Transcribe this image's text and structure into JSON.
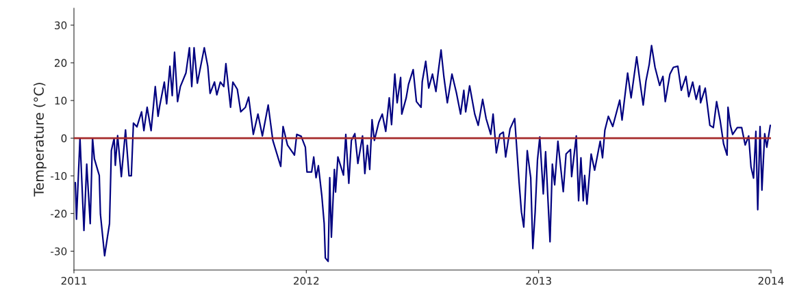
{
  "chart_data": {
    "type": "line",
    "ylabel": "Temperature (°C)",
    "xlim": [
      2011,
      2014
    ],
    "xticks": [
      2011,
      2012,
      2013,
      2014
    ],
    "ylim": [
      -35,
      34.5
    ],
    "yticks": [
      -30,
      -20,
      -10,
      0,
      10,
      20,
      30
    ],
    "grid": false,
    "marker": "none",
    "line_style": "solid",
    "ref_lines": [
      {
        "axis": "y",
        "value": 0,
        "color": "#a52a2a",
        "line_style": "solid"
      }
    ],
    "series": [
      {
        "color": "#000080",
        "x": [
          2011.006,
          2011.011,
          2011.026,
          2011.043,
          2011.055,
          2011.07,
          2011.08,
          2011.088,
          2011.109,
          2011.114,
          2011.132,
          2011.144,
          2011.153,
          2011.161,
          2011.173,
          2011.178,
          2011.188,
          2011.204,
          2011.222,
          2011.237,
          2011.247,
          2011.256,
          2011.271,
          2011.291,
          2011.301,
          2011.315,
          2011.332,
          2011.35,
          2011.362,
          2011.369,
          2011.389,
          2011.399,
          2011.413,
          2011.423,
          2011.433,
          2011.446,
          2011.458,
          2011.482,
          2011.497,
          2011.507,
          2011.517,
          2011.531,
          2011.561,
          2011.576,
          2011.586,
          2011.605,
          2011.615,
          2011.63,
          2011.645,
          2011.654,
          2011.674,
          2011.684,
          2011.703,
          2011.718,
          2011.738,
          2011.752,
          2011.772,
          2011.792,
          2011.811,
          2011.836,
          2011.856,
          2011.89,
          2011.9,
          2011.919,
          2011.949,
          2011.959,
          2011.978,
          2011.996,
          2012.003,
          2012.023,
          2012.032,
          2012.042,
          2012.052,
          2012.067,
          2012.077,
          2012.082,
          2012.094,
          2012.101,
          2012.108,
          2012.121,
          2012.126,
          2012.136,
          2012.16,
          2012.17,
          2012.183,
          2012.194,
          2012.209,
          2012.222,
          2012.242,
          2012.252,
          2012.263,
          2012.273,
          2012.283,
          2012.293,
          2012.312,
          2012.327,
          2012.342,
          2012.357,
          2012.367,
          2012.381,
          2012.391,
          2012.406,
          2012.411,
          2012.43,
          2012.44,
          2012.46,
          2012.474,
          2012.494,
          2012.499,
          2012.514,
          2012.527,
          2012.543,
          2012.558,
          2012.568,
          2012.58,
          2012.592,
          2012.607,
          2012.627,
          2012.646,
          2012.664,
          2012.678,
          2012.686,
          2012.703,
          2012.725,
          2012.74,
          2012.759,
          2012.774,
          2012.794,
          2012.804,
          2012.818,
          2012.833,
          2012.848,
          2012.858,
          2012.877,
          2012.897,
          2012.916,
          2012.926,
          2012.936,
          2012.951,
          2012.961,
          2012.966,
          2012.975,
          2012.985,
          2012.995,
          2013.005,
          2013.02,
          2013.03,
          2013.049,
          2013.059,
          2013.069,
          2013.083,
          2013.106,
          2013.118,
          2013.137,
          2013.142,
          2013.162,
          2013.172,
          2013.182,
          2013.192,
          2013.198,
          2013.208,
          2013.226,
          2013.241,
          2013.265,
          2013.275,
          2013.285,
          2013.3,
          2013.319,
          2013.349,
          2013.359,
          2013.383,
          2013.398,
          2013.422,
          2013.437,
          2013.45,
          2013.462,
          2013.476,
          2013.486,
          2013.501,
          2013.521,
          2013.535,
          2013.545,
          2013.565,
          2013.58,
          2013.599,
          2013.614,
          2013.634,
          2013.646,
          2013.663,
          2013.678,
          2013.693,
          2013.697,
          2013.717,
          2013.737,
          2013.752,
          2013.766,
          2013.781,
          2013.796,
          2013.811,
          2013.815,
          2013.825,
          2013.835,
          2013.855,
          2013.874,
          2013.889,
          2013.904,
          2013.914,
          2013.925,
          2013.935,
          2013.943,
          2013.953,
          2013.961,
          2013.973,
          2013.982,
          2013.997
        ],
        "values": [
          -11.8,
          -21.5,
          0,
          -24.5,
          -6.9,
          -22.7,
          0,
          -5.5,
          -9.9,
          -20.2,
          -31.2,
          -26.3,
          -22.7,
          -3.3,
          0,
          -7.2,
          0.7,
          -10.2,
          2.2,
          -10,
          -10,
          4,
          3,
          7,
          2,
          8.2,
          2,
          13.7,
          5.8,
          8.5,
          14.9,
          9.1,
          19.1,
          11.3,
          22.8,
          9.7,
          13.7,
          17.3,
          24,
          13.7,
          24,
          14.6,
          24,
          19.1,
          11.9,
          14.9,
          11.5,
          14.9,
          13.7,
          19.8,
          8.2,
          14.9,
          13,
          7,
          8.2,
          10.9,
          1,
          6.4,
          0.6,
          8.8,
          -0.6,
          -7.5,
          3.1,
          -1.8,
          -4.5,
          1,
          0.5,
          -2.4,
          -9,
          -9,
          -5,
          -10.5,
          -7.3,
          -15.4,
          -22.7,
          -31.8,
          -32.7,
          -10.5,
          -26.3,
          -8.3,
          -14.3,
          -5,
          -9.8,
          1,
          -12,
          -0.6,
          1.2,
          -6.7,
          0.6,
          -9.4,
          -1.9,
          -8.3,
          4.9,
          -0.6,
          4.2,
          6.4,
          1.8,
          10.7,
          3.6,
          17,
          9.4,
          16.1,
          6.4,
          10.7,
          14.3,
          18.2,
          9.7,
          8.2,
          15,
          20.4,
          13.3,
          17,
          12.4,
          17.6,
          23.4,
          16.4,
          9.4,
          17,
          12.1,
          6.4,
          12.7,
          7,
          13.9,
          6.4,
          3.4,
          10.3,
          5.2,
          1,
          6.4,
          -3.9,
          1,
          1.6,
          -5,
          2.5,
          5.2,
          -11.8,
          -19.6,
          -23.6,
          -3.3,
          -8.2,
          -10.5,
          -29.3,
          -19.6,
          -5.8,
          0.3,
          -14.8,
          -3.6,
          -27.5,
          -6.9,
          -12.4,
          -0.8,
          -14.2,
          -4.2,
          -3,
          -10.2,
          0.6,
          -16.6,
          -5.2,
          -16.6,
          -9.9,
          -17.5,
          -4.2,
          -8.5,
          -0.8,
          -5.2,
          2.1,
          5.8,
          3.1,
          10.1,
          4.8,
          17.3,
          10.7,
          21.6,
          14.6,
          8.8,
          15.2,
          19.6,
          24.6,
          18.8,
          14,
          16.4,
          9.7,
          17,
          18.8,
          19.1,
          12.7,
          16.4,
          11,
          14.9,
          10.3,
          13.9,
          9.4,
          13.3,
          3.4,
          2.8,
          9.7,
          4.8,
          -1.5,
          -4.5,
          8.2,
          3.4,
          1,
          2.8,
          2.8,
          -1.8,
          0.6,
          -7.6,
          -10.6,
          1.8,
          -19,
          3.1,
          -13.8,
          1.2,
          -2.4,
          3.4
        ]
      }
    ]
  }
}
